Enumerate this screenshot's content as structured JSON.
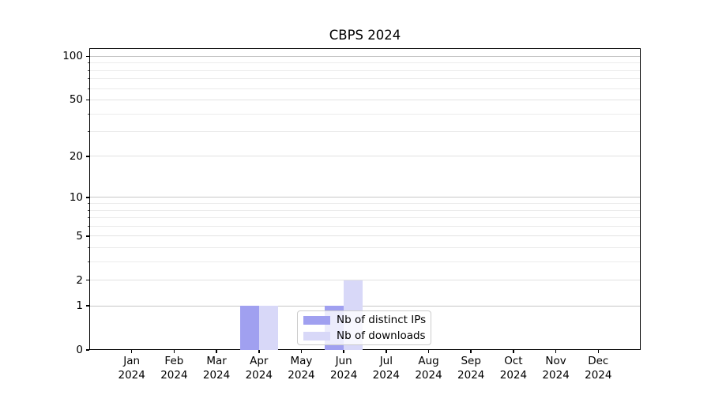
{
  "chart_data": {
    "type": "bar",
    "title": "CBPS 2024",
    "categories": [
      "Jan 2024",
      "Feb 2024",
      "Mar 2024",
      "Apr 2024",
      "May 2024",
      "Jun 2024",
      "Jul 2024",
      "Aug 2024",
      "Sep 2024",
      "Oct 2024",
      "Nov 2024",
      "Dec 2024"
    ],
    "series": [
      {
        "name": "Nb of distinct IPs",
        "color": "#a0a0f0",
        "values": [
          0,
          0,
          0,
          1,
          0,
          1,
          0,
          0,
          0,
          0,
          0,
          0
        ]
      },
      {
        "name": "Nb of downloads",
        "color": "#d8d8f8",
        "values": [
          0,
          0,
          0,
          1,
          0,
          2,
          0,
          0,
          0,
          0,
          0,
          0
        ]
      }
    ],
    "xlabel": "",
    "ylabel": "",
    "y_scale": "log1p",
    "ylim": [
      0,
      114
    ],
    "y_ticks_labeled": [
      0,
      1,
      2,
      5,
      10,
      20,
      50,
      100
    ],
    "y_ticks_sub": [
      2,
      5,
      20,
      50
    ],
    "y_ticks_minor": [
      3,
      4,
      6,
      7,
      8,
      9,
      30,
      40,
      60,
      70,
      80,
      90
    ],
    "y_ticks_emphasis": [
      1,
      10,
      100
    ],
    "grid": true,
    "legend_position": "lower center"
  },
  "legend": {
    "items": [
      {
        "label": "Nb of distinct IPs",
        "swatch_color": "#a0a0f0"
      },
      {
        "label": "Nb of downloads",
        "swatch_color": "#d8d8f8"
      }
    ]
  },
  "colors": {
    "grid_major": "#c6c6c6",
    "grid_sub": "#e2e2e2",
    "grid_minor": "#ebebeb",
    "spine": "#000000",
    "background": "#ffffff",
    "legend_border": "#cccccc"
  }
}
